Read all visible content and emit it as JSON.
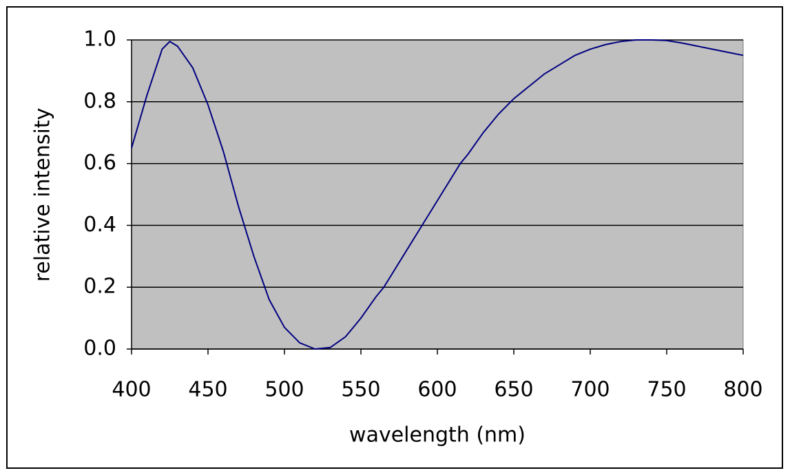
{
  "chart_data": {
    "type": "line",
    "x_label": "wavelength (nm)",
    "y_label": "relative intensity",
    "x": [
      400,
      410,
      420,
      425,
      430,
      440,
      450,
      460,
      470,
      480,
      490,
      500,
      510,
      520,
      530,
      540,
      550,
      560,
      565,
      570,
      580,
      590,
      600,
      610,
      615,
      620,
      630,
      640,
      650,
      660,
      670,
      680,
      690,
      700,
      710,
      720,
      730,
      740,
      750,
      760,
      770,
      780,
      790,
      800
    ],
    "series": [
      {
        "color": "#000080",
        "values": [
          0.65,
          0.82,
          0.97,
          0.995,
          0.98,
          0.91,
          0.79,
          0.64,
          0.46,
          0.3,
          0.16,
          0.07,
          0.02,
          0.0,
          0.005,
          0.04,
          0.1,
          0.17,
          0.2,
          0.24,
          0.32,
          0.4,
          0.48,
          0.56,
          0.6,
          0.63,
          0.7,
          0.76,
          0.81,
          0.85,
          0.89,
          0.92,
          0.95,
          0.97,
          0.985,
          0.995,
          1.0,
          1.0,
          0.998,
          0.99,
          0.98,
          0.97,
          0.96,
          0.95
        ]
      }
    ],
    "xlim": [
      400,
      800
    ],
    "xticks": [
      400,
      450,
      500,
      550,
      600,
      650,
      700,
      750,
      800
    ],
    "ylim": [
      0,
      1
    ],
    "yticks": [
      {
        "value": 0,
        "label": "0.0"
      },
      0.2,
      0.4,
      0.6,
      0.8,
      {
        "value": 1,
        "label": "1.0"
      }
    ],
    "grid": true,
    "plot_background": "#c0c0c0"
  }
}
